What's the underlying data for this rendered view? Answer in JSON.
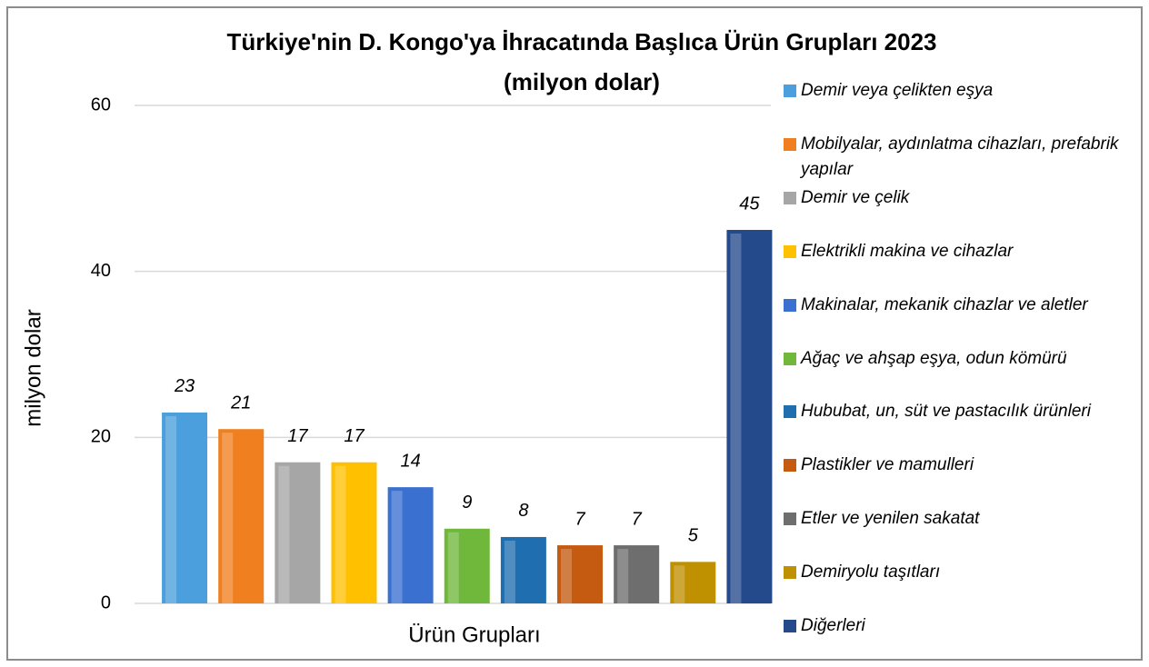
{
  "chart_data": {
    "type": "bar",
    "title": "Türkiye'nin D. Kongo'ya İhracatında Başlıca Ürün Grupları 2023",
    "subtitle": "(milyon dolar)",
    "x_label": "Ürün Grupları",
    "y_label": "milyon dolar",
    "ylim": [
      0,
      60
    ],
    "yticks": [
      0,
      20,
      40,
      60
    ],
    "grid": true,
    "legend": "right",
    "series": [
      {
        "name": "Demir veya çelikten eşya",
        "color": "#4a9fdc",
        "values": [
          23
        ]
      },
      {
        "name": "Mobilyalar, aydınlatma cihazları, prefabrik yapılar",
        "color": "#f07f20",
        "values": [
          21
        ]
      },
      {
        "name": "Demir ve çelik",
        "color": "#a6a6a6",
        "values": [
          17
        ]
      },
      {
        "name": "Elektrikli makina ve cihazlar",
        "color": "#ffc000",
        "values": [
          17
        ]
      },
      {
        "name": "Makinalar, mekanik cihazlar ve aletler",
        "color": "#3a70d0",
        "values": [
          14
        ]
      },
      {
        "name": "Ağaç ve ahşap eşya, odun kömürü",
        "color": "#70b83c",
        "values": [
          9
        ]
      },
      {
        "name": "Hububat, un, süt ve pastacılık ürünleri",
        "color": "#1f6fb0",
        "values": [
          8
        ]
      },
      {
        "name": "Plastikler ve mamulleri",
        "color": "#c55a11",
        "values": [
          7
        ]
      },
      {
        "name": "Etler ve yenilen sakatat",
        "color": "#6e6e6e",
        "values": [
          7
        ]
      },
      {
        "name": "Demiryolu taşıtları",
        "color": "#bf9000",
        "values": [
          5
        ]
      },
      {
        "name": "Diğerleri",
        "color": "#244a8c",
        "values": [
          45
        ]
      }
    ]
  }
}
